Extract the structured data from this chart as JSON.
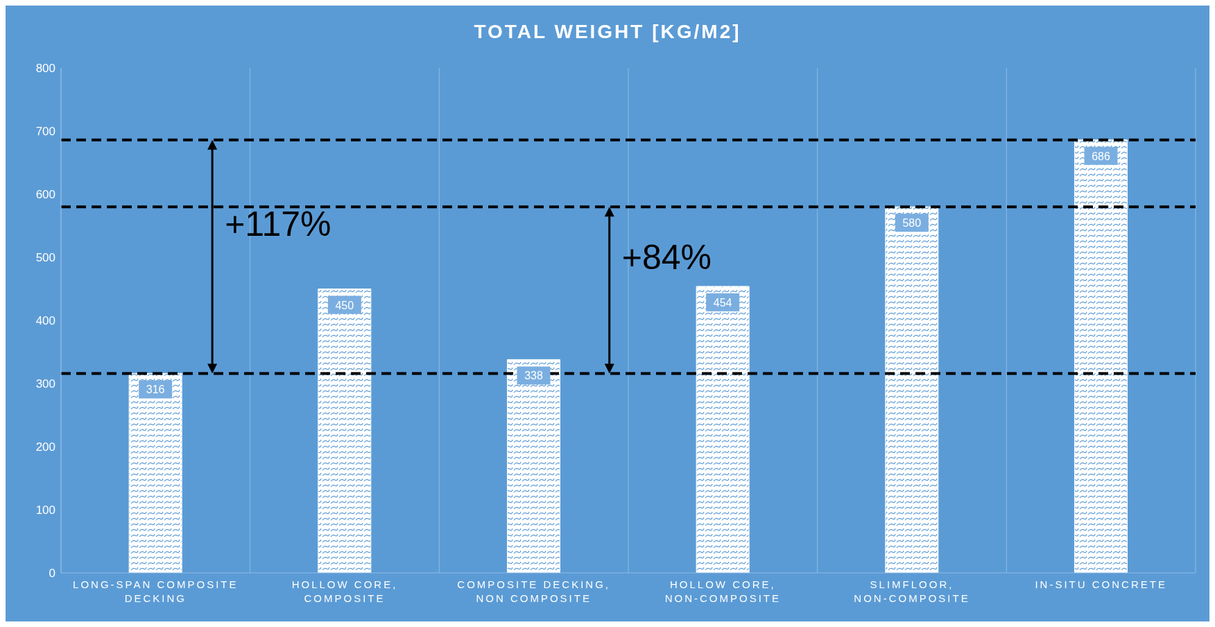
{
  "chart_data": {
    "type": "bar",
    "title": "TOTAL WEIGHT [KG/M2]",
    "categories": [
      "LONG-SPAN COMPOSITE DECKING",
      "HOLLOW CORE, COMPOSITE",
      "COMPOSITE DECKING, NON COMPOSITE",
      "HOLLOW CORE, NON-COMPOSITE",
      "SLIMFLOOR, NON-COMPOSITE",
      "IN-SITU CONCRETE"
    ],
    "values": [
      316,
      450,
      338,
      454,
      580,
      686
    ],
    "color": "#ffffff",
    "ylim": [
      0,
      800
    ],
    "yticks": [
      0,
      100,
      200,
      300,
      400,
      500,
      600,
      700,
      800
    ],
    "grid": "x",
    "data_labels": true,
    "ref_lines": [
      {
        "axis": "y",
        "value": 316,
        "color": "#000000",
        "line_style": "dashed"
      },
      {
        "axis": "y",
        "value": 686,
        "color": "#000000",
        "line_style": "dashed"
      },
      {
        "axis": "y",
        "value": 580,
        "color": "#000000",
        "line_style": "dashed"
      }
    ],
    "annotations": [
      "+117%",
      "+84%"
    ]
  }
}
